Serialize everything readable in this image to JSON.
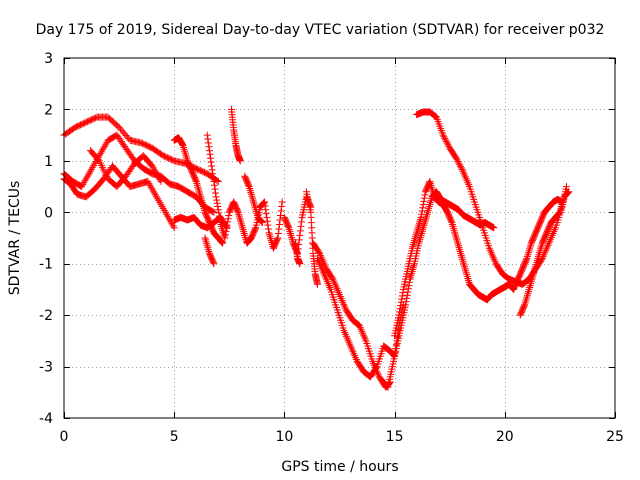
{
  "chart_data": {
    "type": "scatter",
    "title": "Day 175 of 2019, Sidereal Day-to-day VTEC variation (SDTVAR) for receiver p032",
    "xlabel": "GPS time / hours",
    "ylabel": "SDTVAR / TECUs",
    "xlim": [
      0,
      25
    ],
    "ylim": [
      -4,
      3
    ],
    "xticks": [
      0,
      5,
      10,
      15,
      20,
      25
    ],
    "yticks": [
      -4,
      -3,
      -2,
      -1,
      0,
      1,
      2,
      3
    ],
    "grid": true,
    "marker": "+",
    "color": "#ff0000",
    "series": [
      {
        "name": "SDTVAR",
        "tracks": [
          {
            "x": [
              0.0,
              0.5,
              1.0,
              1.5,
              2.0,
              2.5,
              3.0,
              3.5,
              4.0,
              4.5,
              5.0,
              5.5,
              6.0,
              6.5,
              7.0
            ],
            "y": [
              1.5,
              1.65,
              1.75,
              1.85,
              1.85,
              1.65,
              1.4,
              1.35,
              1.25,
              1.1,
              1.0,
              0.95,
              0.85,
              0.75,
              0.6
            ]
          },
          {
            "x": [
              0.0,
              0.4,
              0.8,
              1.2,
              1.6,
              2.0,
              2.4,
              2.8,
              3.2,
              3.6,
              4.0,
              4.4,
              4.8,
              5.2,
              5.6,
              6.0,
              6.4,
              6.8
            ],
            "y": [
              0.75,
              0.6,
              0.5,
              0.8,
              1.1,
              1.4,
              1.5,
              1.25,
              1.0,
              0.85,
              0.75,
              0.7,
              0.55,
              0.5,
              0.4,
              0.3,
              0.1,
              0.0
            ]
          },
          {
            "x": [
              0.0,
              0.3,
              0.6,
              1.0,
              1.4,
              1.8,
              2.2,
              2.6,
              3.0,
              3.4,
              3.8,
              4.2,
              4.6,
              5.0
            ],
            "y": [
              0.65,
              0.55,
              0.35,
              0.3,
              0.45,
              0.65,
              0.9,
              0.7,
              0.5,
              0.55,
              0.6,
              0.3,
              0.0,
              -0.3
            ]
          },
          {
            "x": [
              1.2,
              1.6,
              2.0,
              2.4,
              2.8,
              3.2,
              3.6,
              4.0,
              4.4
            ],
            "y": [
              1.2,
              1.0,
              0.65,
              0.5,
              0.7,
              0.95,
              1.1,
              0.9,
              0.6
            ]
          },
          {
            "x": [
              5.0,
              5.2,
              5.4,
              5.6,
              5.8,
              6.0,
              6.2,
              6.4,
              6.6,
              6.8,
              7.0,
              7.2
            ],
            "y": [
              1.4,
              1.45,
              1.3,
              1.0,
              0.8,
              0.6,
              0.3,
              0.0,
              -0.2,
              -0.4,
              -0.5,
              -0.6
            ]
          },
          {
            "x": [
              5.0,
              5.3,
              5.6,
              5.9,
              6.2,
              6.5,
              6.8,
              7.1,
              7.4
            ],
            "y": [
              -0.15,
              -0.1,
              -0.15,
              -0.1,
              -0.25,
              -0.3,
              -0.2,
              -0.1,
              -0.3
            ]
          },
          {
            "x": [
              6.5,
              6.7,
              6.9,
              7.1,
              7.3,
              7.5,
              7.7,
              7.9,
              8.1,
              8.3,
              8.5,
              8.7,
              8.9,
              9.1,
              9.3,
              9.5,
              9.7,
              9.9
            ],
            "y": [
              1.5,
              0.9,
              0.3,
              -0.2,
              -0.5,
              0.0,
              0.2,
              0.0,
              -0.3,
              -0.6,
              -0.5,
              -0.3,
              0.1,
              0.2,
              -0.4,
              -0.7,
              -0.5,
              0.2
            ]
          },
          {
            "x": [
              6.4,
              6.6,
              6.8
            ],
            "y": [
              -0.5,
              -0.8,
              -1.0
            ]
          },
          {
            "x": [
              7.6,
              7.7,
              7.8,
              7.9,
              8.0
            ],
            "y": [
              2.0,
              1.6,
              1.3,
              1.1,
              1.0
            ]
          },
          {
            "x": [
              8.2,
              8.4,
              8.6,
              8.8,
              9.0
            ],
            "y": [
              0.7,
              0.5,
              0.2,
              -0.1,
              -0.2
            ]
          },
          {
            "x": [
              10.0,
              10.2,
              10.4,
              10.6,
              10.8,
              11.0,
              11.2
            ],
            "y": [
              -0.1,
              -0.3,
              -0.6,
              -0.8,
              -0.1,
              0.3,
              0.1
            ]
          },
          {
            "x": [
              10.5,
              10.6,
              10.7
            ],
            "y": [
              -0.6,
              -0.9,
              -1.0
            ]
          },
          {
            "x": [
              11.0,
              11.2,
              11.3,
              11.4,
              11.5
            ],
            "y": [
              0.4,
              0.0,
              -0.8,
              -1.2,
              -1.4
            ]
          },
          {
            "x": [
              11.3,
              11.6,
              11.9,
              12.2,
              12.5,
              12.8,
              13.1,
              13.4,
              13.7,
              14.0,
              14.3,
              14.6,
              14.8
            ],
            "y": [
              -0.6,
              -0.8,
              -1.1,
              -1.3,
              -1.6,
              -1.9,
              -2.1,
              -2.2,
              -2.5,
              -2.9,
              -3.2,
              -3.4,
              -3.3
            ]
          },
          {
            "x": [
              11.5,
              11.8,
              12.1,
              12.4,
              12.7,
              13.0,
              13.3,
              13.6,
              13.9,
              14.2,
              14.5,
              14.8,
              15.0,
              15.2,
              15.4
            ],
            "y": [
              -0.9,
              -1.2,
              -1.5,
              -1.9,
              -2.3,
              -2.6,
              -2.9,
              -3.1,
              -3.2,
              -3.0,
              -2.6,
              -2.7,
              -2.8,
              -2.2,
              -1.8
            ]
          },
          {
            "x": [
              14.5,
              14.7,
              14.9,
              15.1,
              15.3,
              15.5,
              15.7,
              15.9,
              16.1,
              16.3,
              16.5,
              16.7,
              16.9,
              17.1,
              17.3,
              17.5,
              17.7,
              17.9,
              18.1,
              18.3,
              18.5,
              18.7,
              18.9,
              19.1,
              19.3,
              19.5
            ],
            "y": [
              -3.3,
              -3.4,
              -3.0,
              -2.6,
              -2.2,
              -1.8,
              -1.3,
              -1.0,
              -0.6,
              -0.3,
              0.0,
              0.3,
              0.4,
              0.25,
              0.2,
              0.15,
              0.1,
              0.05,
              -0.05,
              -0.1,
              -0.15,
              -0.2,
              -0.25,
              -0.2,
              -0.25,
              -0.3
            ]
          },
          {
            "x": [
              15.0,
              15.2,
              15.4,
              15.6,
              15.8,
              16.0,
              16.2,
              16.4,
              16.6,
              16.8,
              17.0,
              17.2,
              17.4,
              17.6,
              17.8,
              18.0,
              18.2,
              18.4,
              18.6,
              18.8,
              19.0,
              19.2,
              19.4,
              19.6,
              19.8,
              20.0,
              20.2,
              20.4,
              20.6,
              20.8,
              21.0,
              21.2,
              21.4,
              21.6,
              21.8,
              22.0,
              22.2,
              22.4,
              22.6
            ],
            "y": [
              -2.4,
              -2.0,
              -1.5,
              -1.1,
              -0.7,
              -0.4,
              -0.1,
              0.4,
              0.6,
              0.3,
              0.2,
              0.15,
              0.0,
              -0.2,
              -0.5,
              -0.8,
              -1.1,
              -1.4,
              -1.5,
              -1.6,
              -1.65,
              -1.7,
              -1.6,
              -1.55,
              -1.5,
              -1.45,
              -1.4,
              -1.5,
              -1.3,
              -1.1,
              -0.9,
              -0.6,
              -0.4,
              -0.2,
              0.0,
              0.1,
              0.2,
              0.25,
              0.2
            ]
          },
          {
            "x": [
              16.0,
              16.3,
              16.6,
              16.9,
              17.2,
              17.5,
              17.8,
              18.1,
              18.4,
              18.7,
              19.0,
              19.3,
              19.6,
              19.9,
              20.2,
              20.5,
              20.8,
              21.1,
              21.4,
              21.7,
              22.0,
              22.3,
              22.6,
              22.8
            ],
            "y": [
              1.9,
              1.95,
              1.95,
              1.85,
              1.5,
              1.25,
              1.05,
              0.8,
              0.5,
              0.1,
              -0.3,
              -0.7,
              -1.0,
              -1.2,
              -1.3,
              -1.35,
              -1.4,
              -1.3,
              -1.1,
              -0.9,
              -0.6,
              -0.3,
              0.1,
              0.5
            ]
          },
          {
            "x": [
              20.7,
              20.9,
              21.1,
              21.3,
              21.5,
              21.7,
              21.9,
              22.1,
              22.3,
              22.5,
              22.7,
              22.9
            ],
            "y": [
              -2.0,
              -1.8,
              -1.5,
              -1.2,
              -0.9,
              -0.6,
              -0.4,
              -0.2,
              -0.1,
              0.0,
              0.3,
              0.4
            ]
          }
        ]
      }
    ]
  }
}
